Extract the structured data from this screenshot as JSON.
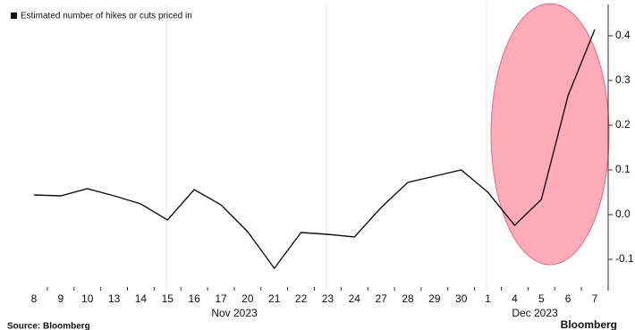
{
  "chart_data": {
    "type": "line",
    "categories": [
      "8",
      "9",
      "10",
      "13",
      "14",
      "15",
      "16",
      "17",
      "20",
      "21",
      "22",
      "23",
      "24",
      "27",
      "28",
      "29",
      "30",
      "1",
      "4",
      "5",
      "6",
      "7"
    ],
    "months": [
      "Nov 2023",
      "Dec 2023"
    ],
    "series": [
      {
        "name": "Estimated number of hikes or cuts priced in",
        "color": "#111111",
        "values": [
          0.044,
          0.042,
          0.058,
          0.042,
          0.024,
          -0.012,
          0.056,
          0.022,
          -0.038,
          -0.12,
          -0.04,
          -0.044,
          -0.05,
          0.016,
          0.072,
          0.086,
          0.1,
          0.05,
          -0.024,
          0.034,
          0.266,
          0.414
        ]
      }
    ],
    "ylim": [
      -0.17,
      0.47
    ],
    "yticks": [
      {
        "value": -0.1,
        "label": "-0.1"
      },
      {
        "value": 0,
        "label": "0.0"
      },
      0.1,
      0.2,
      0.3,
      0.4
    ],
    "source": "Source: Bloomberg",
    "brand": "Bloomberg"
  }
}
